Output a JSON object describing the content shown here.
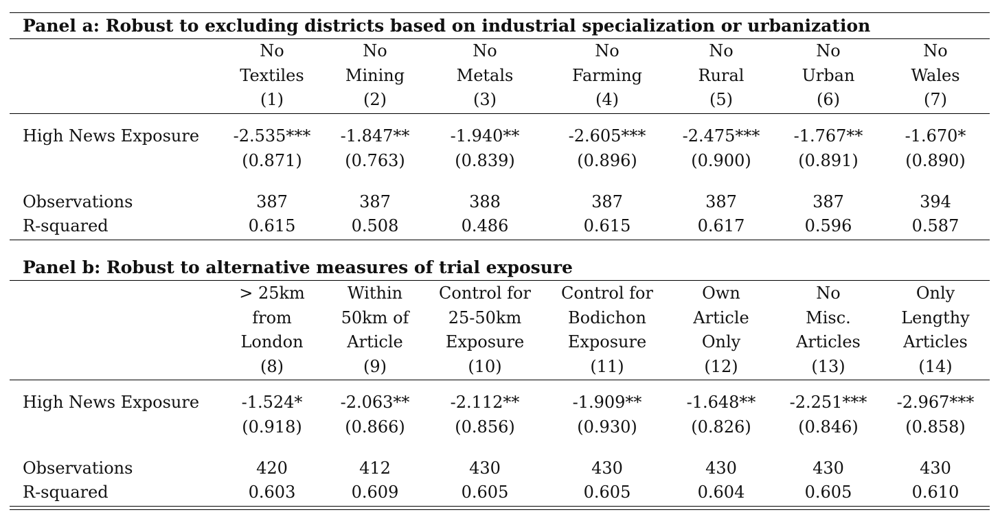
{
  "panel_a": {
    "title": "Panel a: Robust to excluding districts based on industrial specialization or urbanization",
    "columns": [
      {
        "lines": [
          "No",
          "Textiles",
          "(1)"
        ]
      },
      {
        "lines": [
          "No",
          "Mining",
          "(2)"
        ]
      },
      {
        "lines": [
          "No",
          "Metals",
          "(3)"
        ]
      },
      {
        "lines": [
          "No",
          "Farming",
          "(4)"
        ]
      },
      {
        "lines": [
          "No",
          "Rural",
          "(5)"
        ]
      },
      {
        "lines": [
          "No",
          "Urban",
          "(6)"
        ]
      },
      {
        "lines": [
          "No",
          "Wales",
          "(7)"
        ]
      }
    ],
    "row_labels": {
      "coef": "High News Exposure",
      "obs": "Observations",
      "r2": "R-squared"
    },
    "coef": [
      "-2.535***",
      "-1.847**",
      "-1.940**",
      "-2.605***",
      "-2.475***",
      "-1.767**",
      "-1.670*"
    ],
    "se": [
      "(0.871)",
      "(0.763)",
      "(0.839)",
      "(0.896)",
      "(0.900)",
      "(0.891)",
      "(0.890)"
    ],
    "obs": [
      "387",
      "387",
      "388",
      "387",
      "387",
      "387",
      "394"
    ],
    "r2": [
      "0.615",
      "0.508",
      "0.486",
      "0.615",
      "0.617",
      "0.596",
      "0.587"
    ]
  },
  "panel_b": {
    "title": "Panel b: Robust to alternative measures of trial exposure",
    "columns": [
      {
        "lines": [
          "> 25km",
          "from",
          "London",
          "(8)"
        ]
      },
      {
        "lines": [
          "Within",
          "50km of",
          "Article",
          "(9)"
        ]
      },
      {
        "lines": [
          "Control for",
          "25-50km",
          "Exposure",
          "(10)"
        ]
      },
      {
        "lines": [
          "Control for",
          "Bodichon",
          "Exposure",
          "(11)"
        ]
      },
      {
        "lines": [
          "Own",
          "Article",
          "Only",
          "(12)"
        ]
      },
      {
        "lines": [
          "No",
          "Misc.",
          "Articles",
          "(13)"
        ]
      },
      {
        "lines": [
          "Only",
          "Lengthy",
          "Articles",
          "(14)"
        ]
      }
    ],
    "row_labels": {
      "coef": "High News Exposure",
      "obs": "Observations",
      "r2": "R-squared"
    },
    "coef": [
      "-1.524*",
      "-2.063**",
      "-2.112**",
      "-1.909**",
      "-1.648**",
      "-2.251***",
      "-2.967***"
    ],
    "se": [
      "(0.918)",
      "(0.866)",
      "(0.856)",
      "(0.930)",
      "(0.826)",
      "(0.846)",
      "(0.858)"
    ],
    "obs": [
      "420",
      "412",
      "430",
      "430",
      "430",
      "430",
      "430"
    ],
    "r2": [
      "0.603",
      "0.609",
      "0.605",
      "0.605",
      "0.604",
      "0.605",
      "0.610"
    ]
  }
}
